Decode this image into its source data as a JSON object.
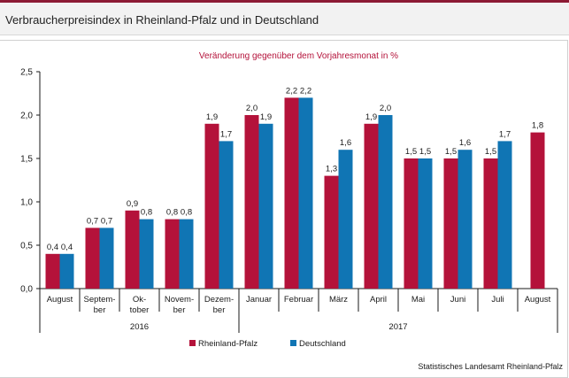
{
  "header": {
    "title": "Verbraucherpreisindex in Rheinland-Pfalz und in Deutschland"
  },
  "source": "Statistisches Landesamt Rheinland-Pfalz",
  "colors": {
    "brand": "#8c1a34",
    "rlp": "#b4123a",
    "de": "#1075b4"
  },
  "chart_data": {
    "type": "bar",
    "title": "Veränderung gegenüber dem Vorjahresmonat in %",
    "categories": [
      "August",
      "Septem-\nber",
      "Ok-\ntober",
      "Novem-\nber",
      "Dezem-\nber",
      "Januar",
      "Februar",
      "März",
      "April",
      "Mai",
      "Juni",
      "Juli",
      "August"
    ],
    "year_groups": [
      {
        "label": "2016",
        "from": 0,
        "to": 4
      },
      {
        "label": "2017",
        "from": 5,
        "to": 12
      }
    ],
    "series": [
      {
        "name": "Rheinland-Pfalz",
        "color": "#b4123a",
        "values": [
          0.4,
          0.7,
          0.9,
          0.8,
          1.9,
          2.0,
          2.2,
          1.3,
          1.9,
          1.5,
          1.5,
          1.5,
          1.8
        ],
        "labels": [
          "0,4",
          "0,7",
          "0,9",
          "0,8",
          "1,9",
          "2,0",
          "2,2",
          "1,3",
          "1,9",
          "1,5",
          "1,5",
          "1,5",
          "1,8"
        ]
      },
      {
        "name": "Deutschland",
        "color": "#1075b4",
        "values": [
          0.4,
          0.7,
          0.8,
          0.8,
          1.7,
          1.9,
          2.2,
          1.6,
          2.0,
          1.5,
          1.6,
          1.7,
          null
        ],
        "labels": [
          "0,4",
          "0,7",
          "0,8",
          "0,8",
          "1,7",
          "1,9",
          "2,2",
          "1,6",
          "2,0",
          "1,5",
          "1,6",
          "1,7",
          ""
        ]
      }
    ],
    "yticks": [
      0,
      0.5,
      1.0,
      1.5,
      2.0,
      2.5
    ],
    "ytick_labels": [
      "0,0",
      "0,5",
      "1,0",
      "1,5",
      "2,0",
      "2,5"
    ],
    "ylim": [
      0,
      2.5
    ],
    "grid": false,
    "legend": "bottom-center"
  }
}
